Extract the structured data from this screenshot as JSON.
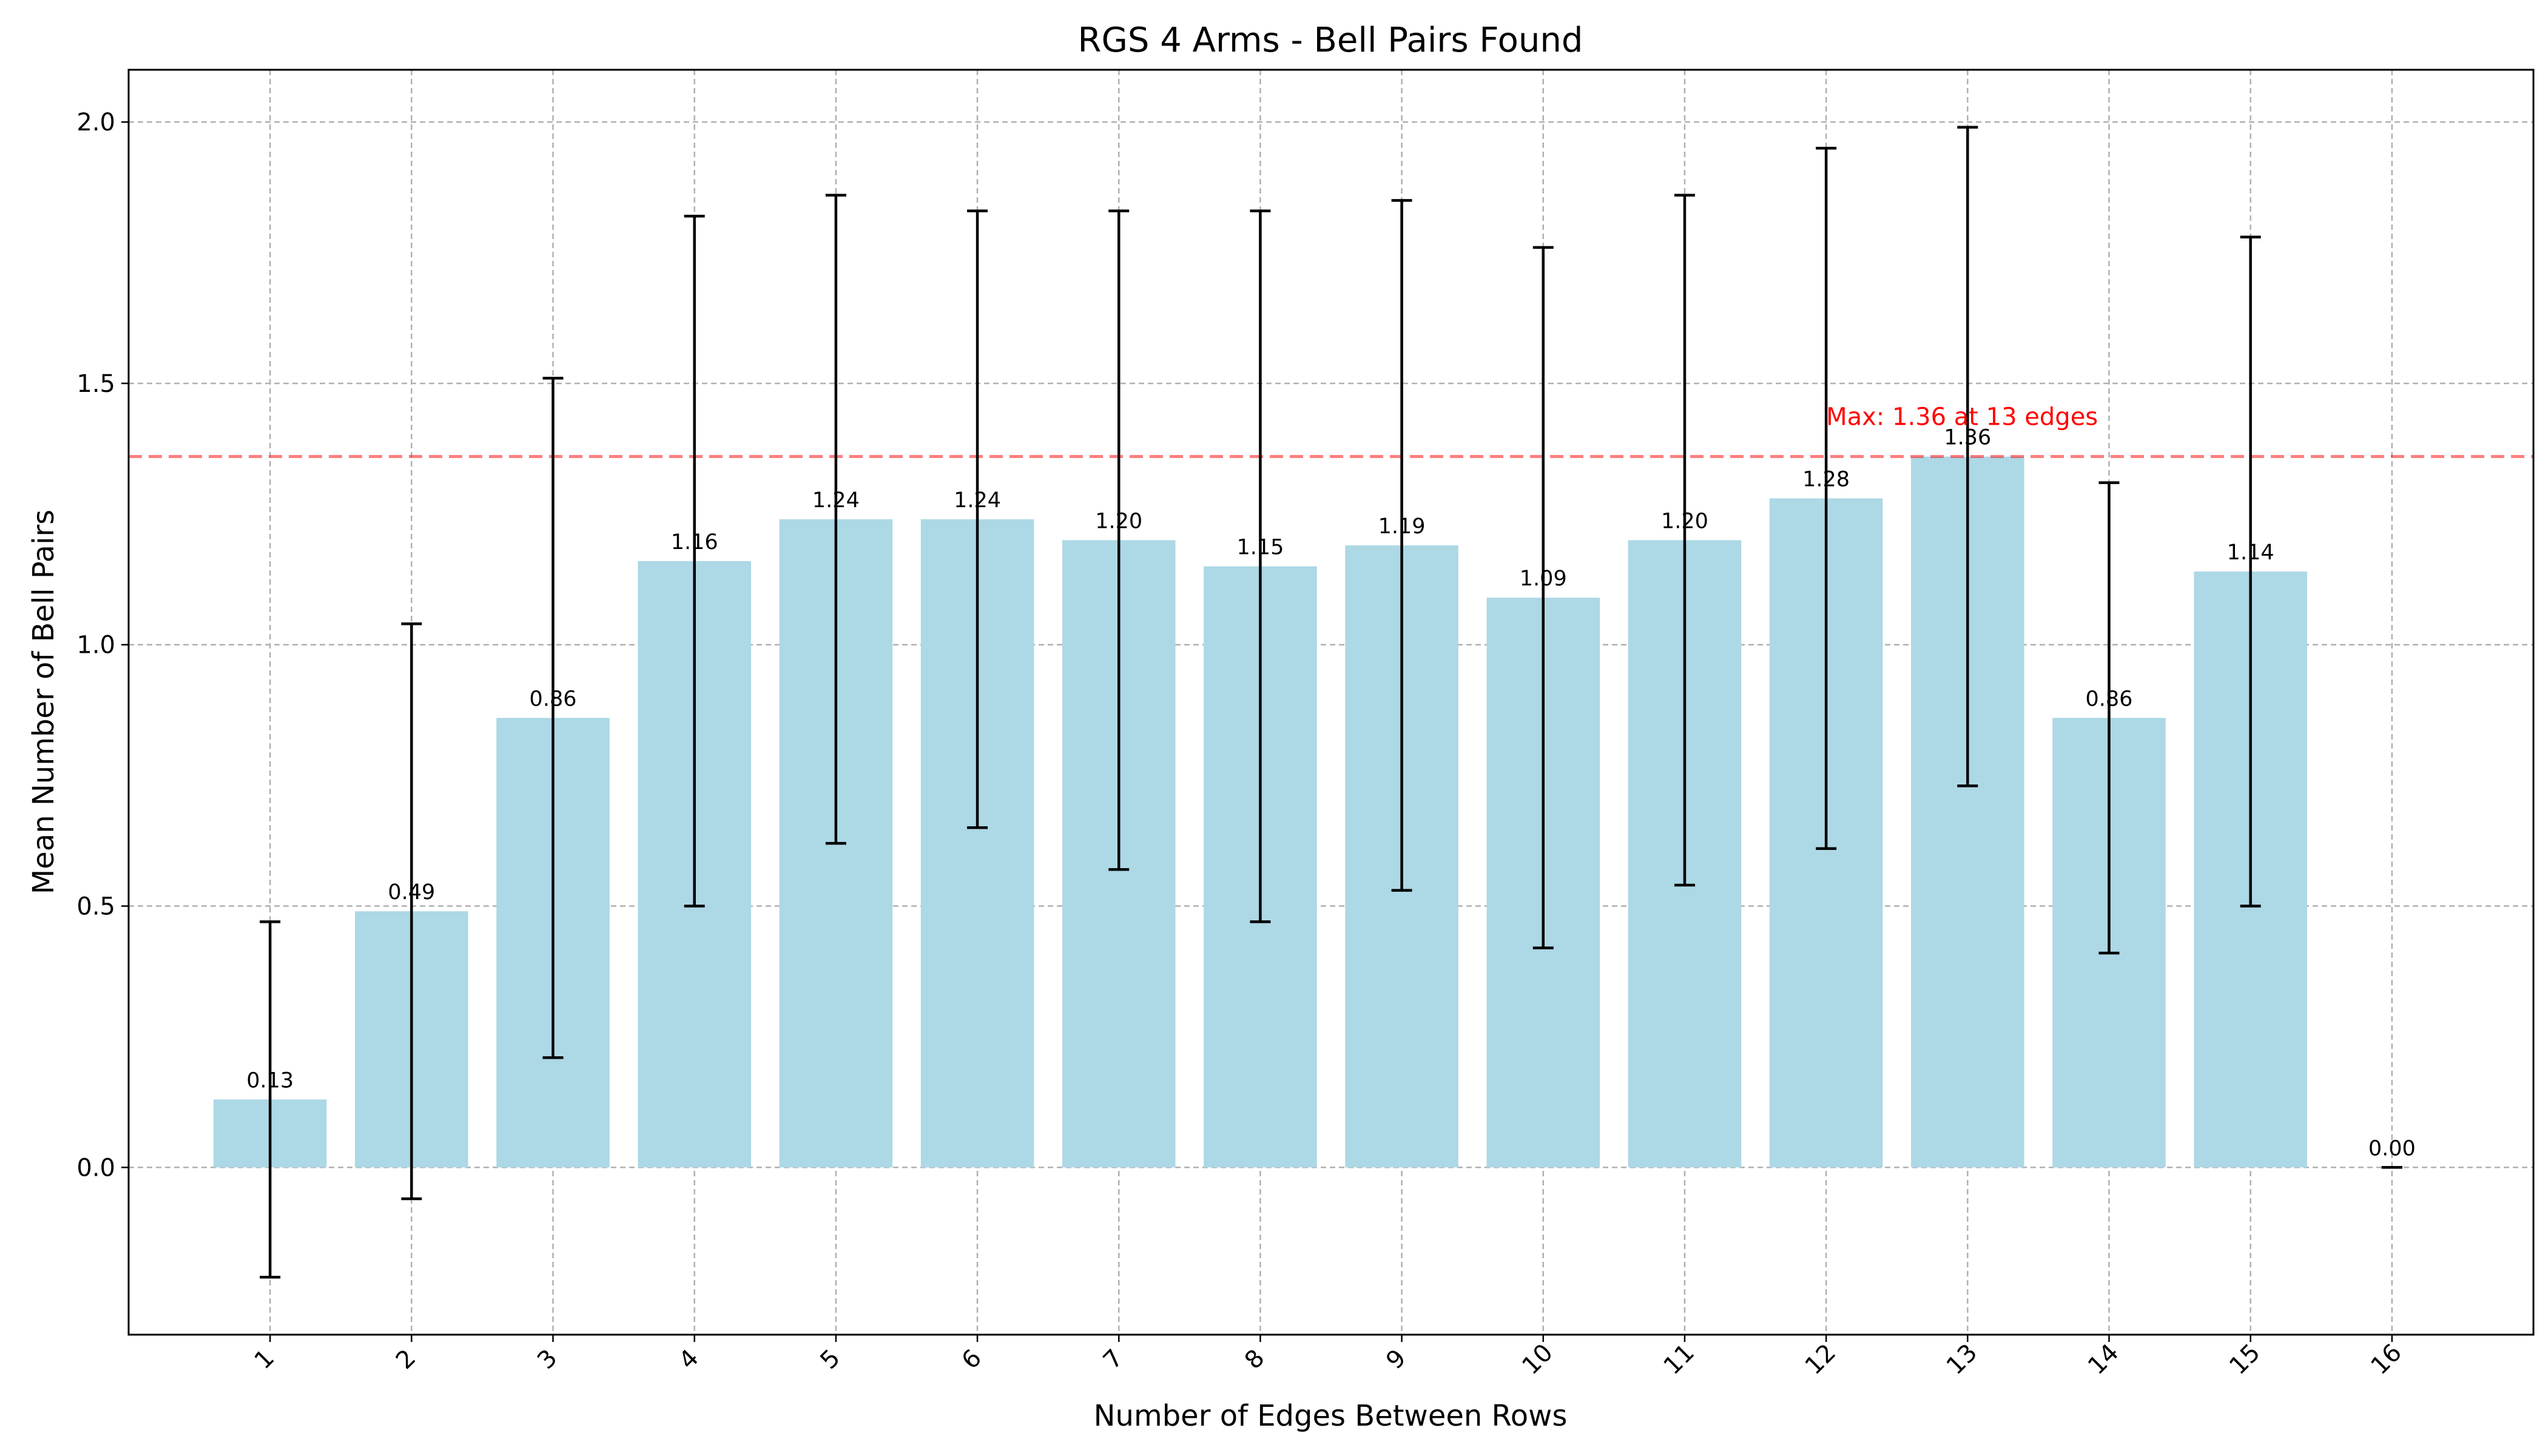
{
  "chart_data": {
    "type": "bar",
    "title": "RGS 4 Arms - Bell Pairs Found",
    "xlabel": "Number of Edges Between Rows",
    "ylabel": "Mean Number of Bell Pairs",
    "categories": [
      "1",
      "2",
      "3",
      "4",
      "5",
      "6",
      "7",
      "8",
      "9",
      "10",
      "11",
      "12",
      "13",
      "14",
      "15",
      "16"
    ],
    "values": [
      0.13,
      0.49,
      0.86,
      1.16,
      1.24,
      1.24,
      1.2,
      1.15,
      1.19,
      1.09,
      1.2,
      1.28,
      1.36,
      0.86,
      1.14,
      0.0
    ],
    "errors": [
      0.34,
      0.55,
      0.65,
      0.66,
      0.62,
      0.59,
      0.63,
      0.68,
      0.66,
      0.67,
      0.66,
      0.67,
      0.63,
      0.45,
      0.64,
      0.0
    ],
    "data_labels": [
      "0.13",
      "0.49",
      "0.86",
      "1.16",
      "1.24",
      "1.24",
      "1.20",
      "1.15",
      "1.19",
      "1.09",
      "1.20",
      "1.28",
      "1.36",
      "0.86",
      "1.14",
      "0.00"
    ],
    "yticks": [
      "0.0",
      "0.5",
      "1.0",
      "1.5",
      "2.0"
    ],
    "ylim": [
      -0.32,
      2.1
    ],
    "xlim": [
      0.0,
      17.0
    ],
    "grid": true,
    "bar_color": "#add8e6",
    "error_color": "#000000",
    "max_line": {
      "value": 1.36,
      "label": "Max: 1.36 at 13 edges",
      "color": "#ff0000"
    }
  }
}
